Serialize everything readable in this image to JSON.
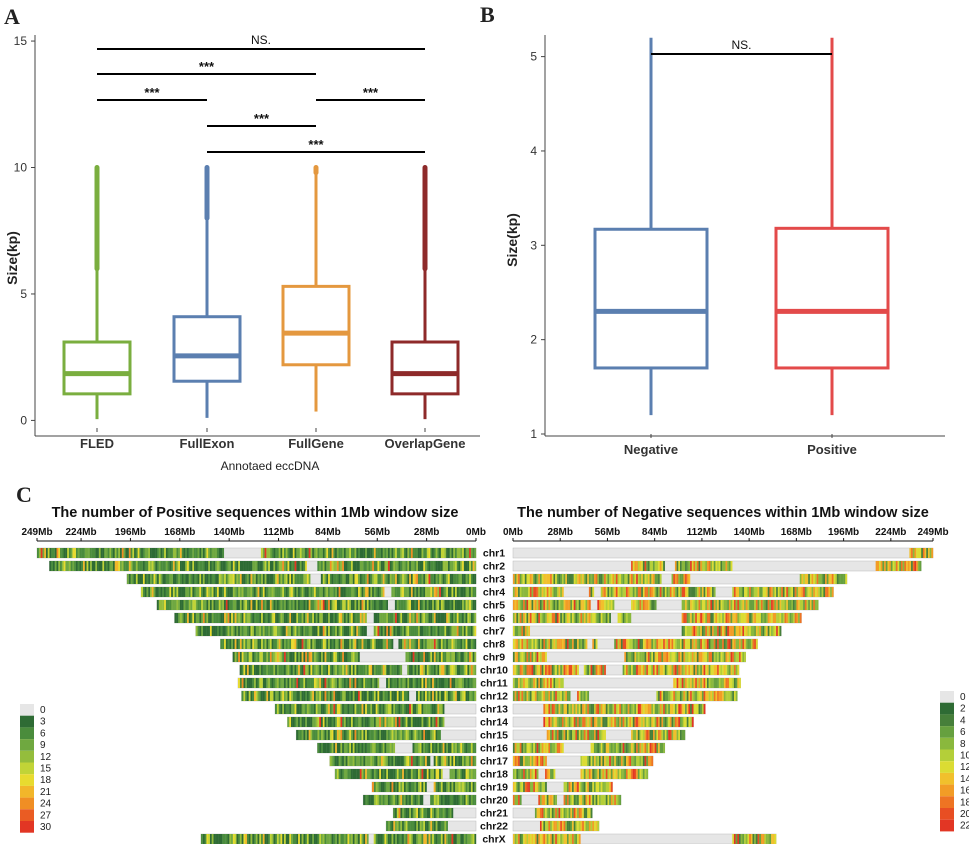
{
  "chart_data": [
    {
      "panel": "A",
      "type": "boxplot",
      "xlabel": "Annotaed eccDNA",
      "ylabel": "Size(kp)",
      "ylim": [
        -0.3,
        15.2
      ],
      "yticks": [
        0,
        5,
        10,
        15
      ],
      "series": [
        {
          "name": "FLED",
          "color": "#7aae3f",
          "whisker_low": 0.05,
          "q1": 1.05,
          "median": 1.85,
          "q3": 3.1,
          "whisker_high": 6.0,
          "outlier_max": 10.0
        },
        {
          "name": "FullExon",
          "color": "#5b7fb0",
          "whisker_low": 0.1,
          "q1": 1.55,
          "median": 2.55,
          "q3": 4.1,
          "whisker_high": 8.0,
          "outlier_max": 10.0
        },
        {
          "name": "FullGene",
          "color": "#e4983f",
          "whisker_low": 0.35,
          "q1": 2.2,
          "median": 3.45,
          "q3": 5.3,
          "whisker_high": 9.8,
          "outlier_max": 10.0
        },
        {
          "name": "OverlapGene",
          "color": "#8e2a2a",
          "whisker_low": 0.05,
          "q1": 1.05,
          "median": 1.85,
          "q3": 3.1,
          "whisker_high": 6.0,
          "outlier_max": 10.0
        }
      ],
      "comparisons": [
        {
          "from": 0,
          "to": 3,
          "label": "NS."
        },
        {
          "from": 0,
          "to": 2,
          "label": "***"
        },
        {
          "from": 0,
          "to": 1,
          "label": "***"
        },
        {
          "from": 2,
          "to": 3,
          "label": "***"
        },
        {
          "from": 1,
          "to": 2,
          "label": "***"
        },
        {
          "from": 1,
          "to": 3,
          "label": "***"
        }
      ]
    },
    {
      "panel": "B",
      "type": "boxplot",
      "xlabel": "",
      "ylabel": "Size(kp)",
      "ylim": [
        1,
        5.6
      ],
      "yticks": [
        1,
        2,
        3,
        4,
        5
      ],
      "series": [
        {
          "name": "Negative",
          "color": "#5b7fb0",
          "whisker_low": 1.2,
          "q1": 1.7,
          "median": 2.3,
          "q3": 3.17,
          "whisker_high": 5.2
        },
        {
          "name": "Positive",
          "color": "#e34a4a",
          "whisker_low": 1.2,
          "q1": 1.7,
          "median": 2.3,
          "q3": 3.18,
          "whisker_high": 5.2
        }
      ],
      "comparisons": [
        {
          "from": 0,
          "to": 1,
          "label": "NS."
        }
      ]
    },
    {
      "panel": "C",
      "type": "heatmap",
      "left_title": "The number of Positive sequences within 1Mb window size",
      "right_title": "The number of Negative sequences within 1Mb window size",
      "left_axis_ticks": [
        "249Mb",
        "224Mb",
        "196Mb",
        "168Mb",
        "140Mb",
        "112Mb",
        "84Mb",
        "56Mb",
        "28Mb",
        "0Mb"
      ],
      "right_axis_ticks": [
        "0Mb",
        "28Mb",
        "56Mb",
        "84Mb",
        "112Mb",
        "140Mb",
        "168Mb",
        "196Mb",
        "224Mb",
        "249Mb"
      ],
      "axis_tick_values": [
        249,
        224,
        196,
        168,
        140,
        112,
        84,
        56,
        28,
        0
      ],
      "chromosomes": [
        {
          "name": "chr1",
          "length": 249,
          "gaps": [
            [
              122,
              143
            ]
          ]
        },
        {
          "name": "chr2",
          "length": 242,
          "gaps": [
            [
              90,
              96
            ]
          ]
        },
        {
          "name": "chr3",
          "length": 198,
          "gaps": [
            [
              88,
              94
            ]
          ]
        },
        {
          "name": "chr4",
          "length": 190,
          "gaps": [
            [
              48,
              52
            ]
          ]
        },
        {
          "name": "chr5",
          "length": 181,
          "gaps": [
            [
              46,
              50
            ]
          ]
        },
        {
          "name": "chr6",
          "length": 171,
          "gaps": [
            [
              58,
              62
            ]
          ]
        },
        {
          "name": "chr7",
          "length": 159,
          "gaps": [
            [
              58,
              62
            ]
          ]
        },
        {
          "name": "chr8",
          "length": 145,
          "gaps": [
            [
              44,
              47
            ]
          ]
        },
        {
          "name": "chr9",
          "length": 138,
          "gaps": [
            [
              40,
              66
            ]
          ]
        },
        {
          "name": "chr10",
          "length": 134,
          "gaps": [
            [
              39,
              42
            ]
          ]
        },
        {
          "name": "chr11",
          "length": 135,
          "gaps": [
            [
              51,
              55
            ]
          ]
        },
        {
          "name": "chr12",
          "length": 133,
          "gaps": [
            [
              34,
              38
            ]
          ]
        },
        {
          "name": "chr13",
          "length": 114,
          "gaps": [
            [
              0,
              18
            ]
          ]
        },
        {
          "name": "chr14",
          "length": 107,
          "gaps": [
            [
              0,
              18
            ]
          ]
        },
        {
          "name": "chr15",
          "length": 102,
          "gaps": [
            [
              0,
              20
            ]
          ]
        },
        {
          "name": "chr16",
          "length": 90,
          "gaps": [
            [
              36,
              46
            ]
          ]
        },
        {
          "name": "chr17",
          "length": 83,
          "gaps": [
            [
              24,
              26
            ]
          ]
        },
        {
          "name": "chr18",
          "length": 80,
          "gaps": [
            [
              15,
              19
            ]
          ]
        },
        {
          "name": "chr19",
          "length": 59,
          "gaps": [
            [
              24,
              28
            ]
          ]
        },
        {
          "name": "chr20",
          "length": 64,
          "gaps": [
            [
              26,
              30
            ]
          ]
        },
        {
          "name": "chr21",
          "length": 47,
          "gaps": [
            [
              0,
              13
            ]
          ]
        },
        {
          "name": "chr22",
          "length": 51,
          "gaps": [
            [
              0,
              16
            ]
          ]
        },
        {
          "name": "chrX",
          "length": 156,
          "gaps": [
            [
              58,
              61
            ]
          ]
        }
      ],
      "left_legend": {
        "labels": [
          "0",
          "3",
          "6",
          "9",
          "12",
          "15",
          "18",
          "21",
          "24",
          "27",
          "30"
        ],
        "colors": [
          "#e6e6e6",
          "#2e6b34",
          "#4a8c3c",
          "#6fa840",
          "#94bd3c",
          "#c1d437",
          "#e8db2f",
          "#f2b62a",
          "#f08e24",
          "#ea5c23",
          "#e23624"
        ]
      },
      "right_legend": {
        "labels": [
          "0",
          "2",
          "4",
          "6",
          "8",
          "10",
          "12",
          "14",
          "16",
          "18",
          "20",
          "22"
        ],
        "colors": [
          "#e6e6e6",
          "#2e6b34",
          "#467f3a",
          "#66a03f",
          "#8ab83d",
          "#b4cf39",
          "#dbdc33",
          "#f1c02c",
          "#f29c26",
          "#ee7423",
          "#e84e23",
          "#e23624"
        ]
      }
    }
  ]
}
